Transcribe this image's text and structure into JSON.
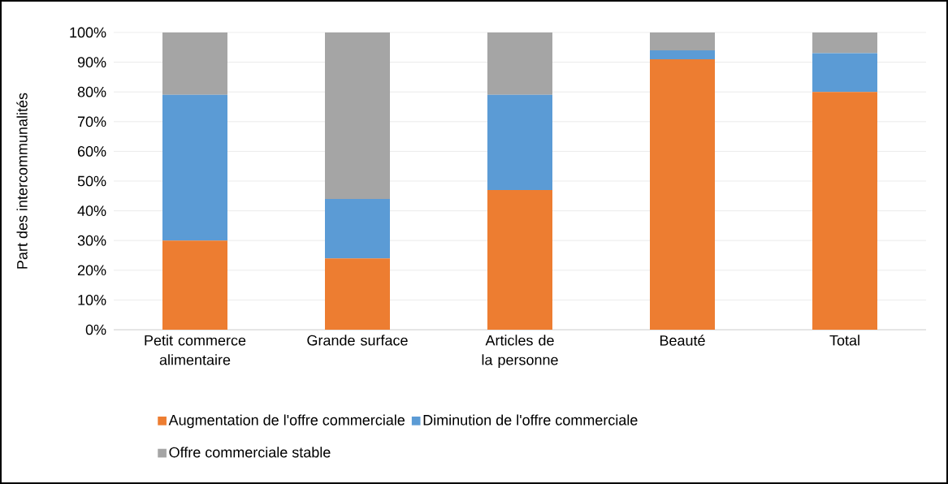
{
  "chart_data": {
    "type": "bar",
    "stacked": true,
    "ylabel": "Part des intercommunalités",
    "categories": [
      "Petit commerce alimentaire",
      "Grande surface",
      "Articles de la personne",
      "Beauté",
      "Total"
    ],
    "series": [
      {
        "name": "Augmentation de l'offre commerciale",
        "color": "#ed7d31",
        "values": [
          30,
          24,
          47,
          91,
          80
        ]
      },
      {
        "name": "Diminution de l'offre commerciale",
        "color": "#5b9bd5",
        "values": [
          49,
          20,
          32,
          3,
          13
        ]
      },
      {
        "name": "Offre commerciale stable",
        "color": "#a5a5a5",
        "values": [
          21,
          56,
          21,
          6,
          7
        ]
      }
    ],
    "ylim": [
      0,
      100
    ],
    "yticks": [
      {
        "value": 0,
        "label": "0%"
      },
      {
        "value": 10,
        "label": "10%"
      },
      {
        "value": 20,
        "label": "20%"
      },
      {
        "value": 30,
        "label": "30%"
      },
      {
        "value": 40,
        "label": "40%"
      },
      {
        "value": 50,
        "label": "50%"
      },
      {
        "value": 60,
        "label": "60%"
      },
      {
        "value": 70,
        "label": "70%"
      },
      {
        "value": 80,
        "label": "80%"
      },
      {
        "value": 90,
        "label": "90%"
      },
      {
        "value": 100,
        "label": "100%"
      }
    ],
    "grid": "y",
    "legend": "bottom"
  }
}
